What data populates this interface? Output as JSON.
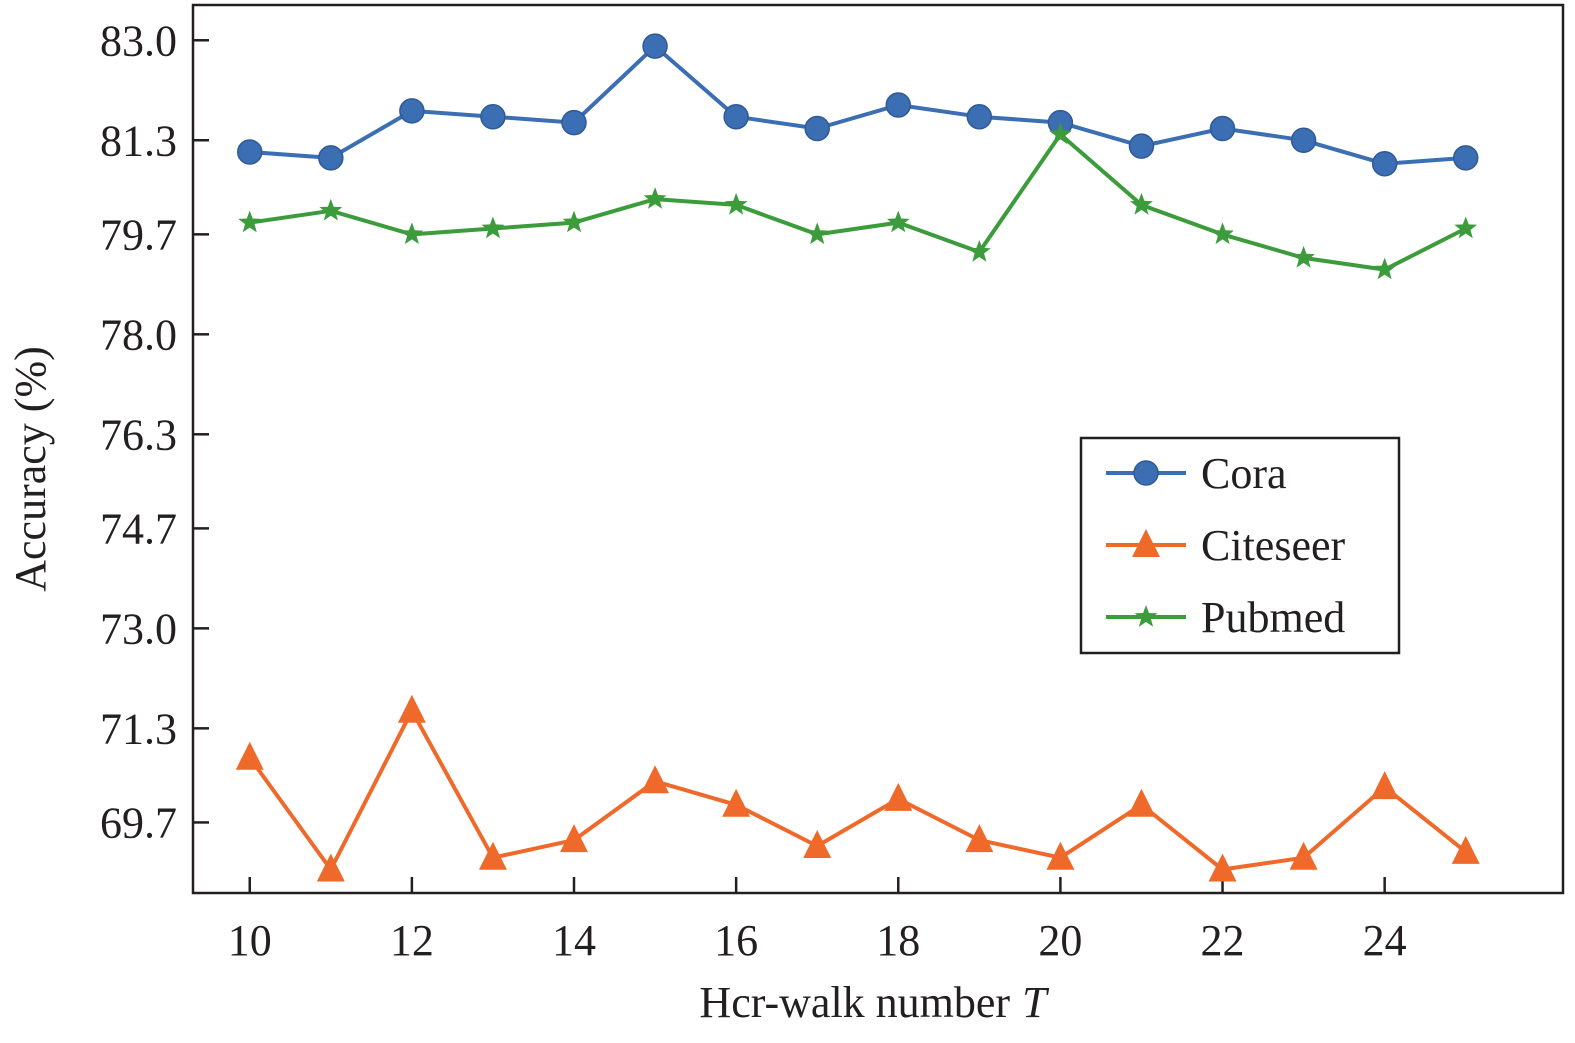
{
  "chart_data": {
    "type": "line",
    "title": "",
    "xlabel": "Hcr-walk number",
    "xlabel_var": "T",
    "ylabel": "Accuracy (%)",
    "x": [
      10,
      11,
      12,
      13,
      14,
      15,
      16,
      17,
      18,
      19,
      20,
      21,
      22,
      23,
      24,
      25
    ],
    "xlim": [
      9.3,
      26.2
    ],
    "ylim": [
      68.5,
      83.6
    ],
    "xticks": [
      10,
      12,
      14,
      16,
      18,
      20,
      22,
      24
    ],
    "xtick_labels": [
      "10",
      "12",
      "14",
      "16",
      "18",
      "20",
      "22",
      "24"
    ],
    "yticks": [
      69.7,
      71.3,
      73.0,
      74.7,
      76.3,
      78.0,
      79.7,
      81.3,
      83.0
    ],
    "ytick_labels": [
      "69.7",
      "71.3",
      "73.0",
      "74.7",
      "76.3",
      "78.0",
      "79.7",
      "81.3",
      "83.0"
    ],
    "grid": false,
    "legend_position": "center-right",
    "series": [
      {
        "name": "Cora",
        "marker": "circle",
        "color": "#3c6eb4",
        "values": [
          81.1,
          81.0,
          81.8,
          81.7,
          81.6,
          82.9,
          81.7,
          81.5,
          81.9,
          81.7,
          81.6,
          81.2,
          81.5,
          81.3,
          80.9,
          81.0
        ]
      },
      {
        "name": "Citeseer",
        "marker": "triangle",
        "color": "#ef6a2a",
        "values": [
          70.8,
          68.9,
          71.6,
          69.1,
          69.4,
          70.4,
          70.0,
          69.3,
          70.1,
          69.4,
          69.1,
          70.0,
          68.9,
          69.1,
          70.3,
          69.2
        ]
      },
      {
        "name": "Pubmed",
        "marker": "star",
        "color": "#3c9c3c",
        "values": [
          79.9,
          80.1,
          79.7,
          79.8,
          79.9,
          80.3,
          80.2,
          79.7,
          79.9,
          79.4,
          81.4,
          80.2,
          79.7,
          79.3,
          79.1,
          79.8
        ]
      }
    ]
  }
}
